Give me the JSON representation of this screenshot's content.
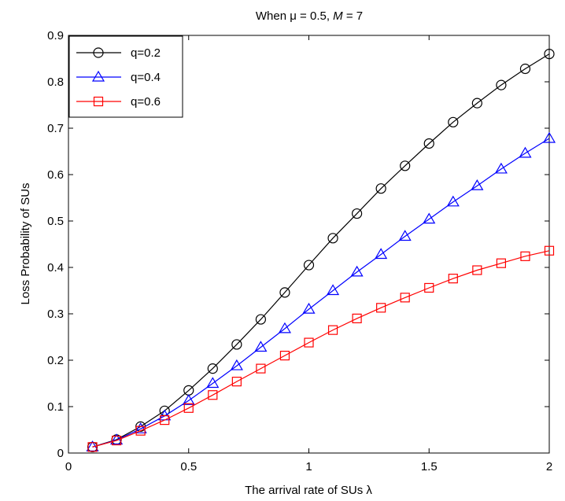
{
  "chart_data": {
    "type": "line",
    "title": "When μ = 0.5,  M = 7",
    "title_parts": {
      "prefix": "When μ = 0.5,  ",
      "var": "M",
      "suffix": " = 7"
    },
    "xlabel": "The arrival rate of SUs λ",
    "ylabel": "Loss Probability of SUs",
    "xlim": [
      0,
      2
    ],
    "ylim": [
      0,
      0.9
    ],
    "xticks": [
      0,
      0.5,
      1,
      1.5,
      2
    ],
    "xtick_labels": [
      "0",
      "0.5",
      "1",
      "1.5",
      "2"
    ],
    "yticks": [
      0,
      0.1,
      0.2,
      0.3,
      0.4,
      0.5,
      0.6,
      0.7,
      0.8,
      0.9
    ],
    "ytick_labels": [
      "0",
      "0.1",
      "0.2",
      "0.3",
      "0.4",
      "0.5",
      "0.6",
      "0.7",
      "0.8",
      "0.9"
    ],
    "grid": false,
    "legend_position": "top-left",
    "x": [
      0.1,
      0.2,
      0.3,
      0.4,
      0.5,
      0.6,
      0.7,
      0.8,
      0.9,
      1.0,
      1.1,
      1.2,
      1.3,
      1.4,
      1.5,
      1.6,
      1.7,
      1.8,
      1.9,
      2.0
    ],
    "series": [
      {
        "name": "q=0.2",
        "color": "#000000",
        "marker": "circle",
        "values": [
          0.013,
          0.029,
          0.057,
          0.091,
          0.135,
          0.182,
          0.234,
          0.288,
          0.346,
          0.405,
          0.463,
          0.516,
          0.57,
          0.619,
          0.667,
          0.713,
          0.754,
          0.793,
          0.828,
          0.86
        ]
      },
      {
        "name": "q=0.4",
        "color": "#0000ff",
        "marker": "triangle",
        "values": [
          0.013,
          0.028,
          0.052,
          0.08,
          0.113,
          0.15,
          0.188,
          0.228,
          0.268,
          0.31,
          0.35,
          0.39,
          0.428,
          0.467,
          0.504,
          0.541,
          0.576,
          0.612,
          0.646,
          0.678
        ]
      },
      {
        "name": "q=0.6",
        "color": "#ff0000",
        "marker": "square",
        "values": [
          0.013,
          0.027,
          0.048,
          0.071,
          0.097,
          0.125,
          0.154,
          0.182,
          0.21,
          0.238,
          0.265,
          0.29,
          0.313,
          0.335,
          0.356,
          0.376,
          0.394,
          0.409,
          0.424,
          0.436
        ]
      }
    ]
  }
}
